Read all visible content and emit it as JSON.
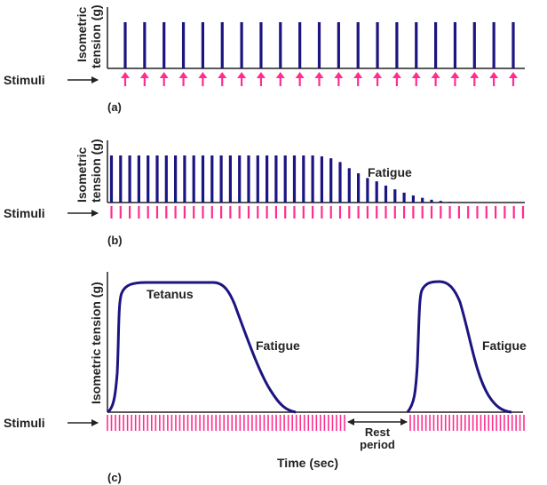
{
  "colors": {
    "tension": "#1c1480",
    "stimulus": "#ff2d8f",
    "axis": "#222222"
  },
  "panel_a": {
    "label": "(a)",
    "ylabel_line1": "Isometric",
    "ylabel_line2": "tension (g)",
    "stimuli_label": "Stimuli",
    "twitch_count": 21,
    "stimulus_glyph": "up-arrow"
  },
  "panel_b": {
    "label": "(b)",
    "ylabel_line1": "Isometric",
    "ylabel_line2": "tension (g)",
    "stimuli_label": "Stimuli",
    "annotation": "Fatigue",
    "stimulus_count": 46,
    "relative_heights": [
      1,
      1,
      1,
      1,
      1,
      1,
      1,
      1,
      1,
      1,
      1,
      1,
      1,
      1,
      1,
      1,
      1,
      1,
      1,
      1,
      1,
      1,
      1,
      0.98,
      0.94,
      0.86,
      0.73,
      0.62,
      0.52,
      0.45,
      0.36,
      0.28,
      0.21,
      0.15,
      0.1,
      0.06,
      0.035,
      0.015,
      0,
      0,
      0,
      0,
      0,
      0,
      0,
      0
    ]
  },
  "panel_c": {
    "label": "(c)",
    "ylabel": "Isometric tension (g)",
    "stimuli_label": "Stimuli",
    "tetanus_label": "Tetanus",
    "fatigue_label_1": "Fatigue",
    "fatigue_label_2": "Fatigue",
    "rest_line1": "Rest",
    "rest_line2": "period",
    "xlabel": "Time (sec)",
    "stimulus_count_1": 60,
    "stimulus_count_2": 30
  }
}
